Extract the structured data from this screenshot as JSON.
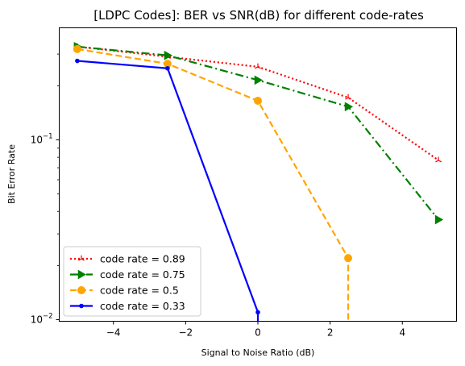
{
  "chart_data": {
    "type": "line",
    "title": "[LDPC Codes]: BER vs SNR(dB) for different code-rates",
    "xlabel": "Signal to Noise Ratio (dB)",
    "ylabel": "Bit Error Rate",
    "xlim": [
      -5.5,
      5.5
    ],
    "ylim": [
      0.0098,
      0.42
    ],
    "yscale": "log",
    "x_ticks": [
      -4,
      -2,
      0,
      2,
      4
    ],
    "x_tick_labels": [
      "−4",
      "−2",
      "0",
      "2",
      "4"
    ],
    "y_major_ticks": [
      0.01,
      0.1
    ],
    "y_major_labels": [
      {
        "base": "10",
        "exp": "−2"
      },
      {
        "base": "10",
        "exp": "−1"
      }
    ],
    "y_minor_ticks": [
      0.02,
      0.03,
      0.04,
      0.05,
      0.06,
      0.07,
      0.08,
      0.09,
      0.2,
      0.3
    ],
    "grid": false,
    "legend_position": "lower-left",
    "series": [
      {
        "name": "code rate = 0.89",
        "color": "#ff0000",
        "dash": "2,3",
        "marker": "tri_up",
        "x": [
          -5,
          -2.5,
          0,
          2.5,
          5
        ],
        "y": [
          0.33,
          0.29,
          0.255,
          0.172,
          0.077
        ]
      },
      {
        "name": "code rate = 0.75",
        "color": "#008000",
        "dash": "10,4,2,4",
        "marker": "triangle_right",
        "x": [
          -5,
          -2.5,
          0,
          2.5,
          5
        ],
        "y": [
          0.33,
          0.295,
          0.215,
          0.153,
          0.036
        ]
      },
      {
        "name": "code rate = 0.5",
        "color": "#ffa500",
        "dash": "8,4",
        "marker": "circle",
        "x": [
          -5,
          -2.5,
          0,
          2.5,
          2.5
        ],
        "y": [
          0.32,
          0.265,
          0.165,
          0.022,
          0.0098
        ]
      },
      {
        "name": "code rate = 0.33",
        "color": "#0000ff",
        "dash": "",
        "marker": "point",
        "x": [
          -5,
          -2.5,
          0,
          0
        ],
        "y": [
          0.275,
          0.25,
          0.011,
          0.0098
        ]
      }
    ]
  }
}
